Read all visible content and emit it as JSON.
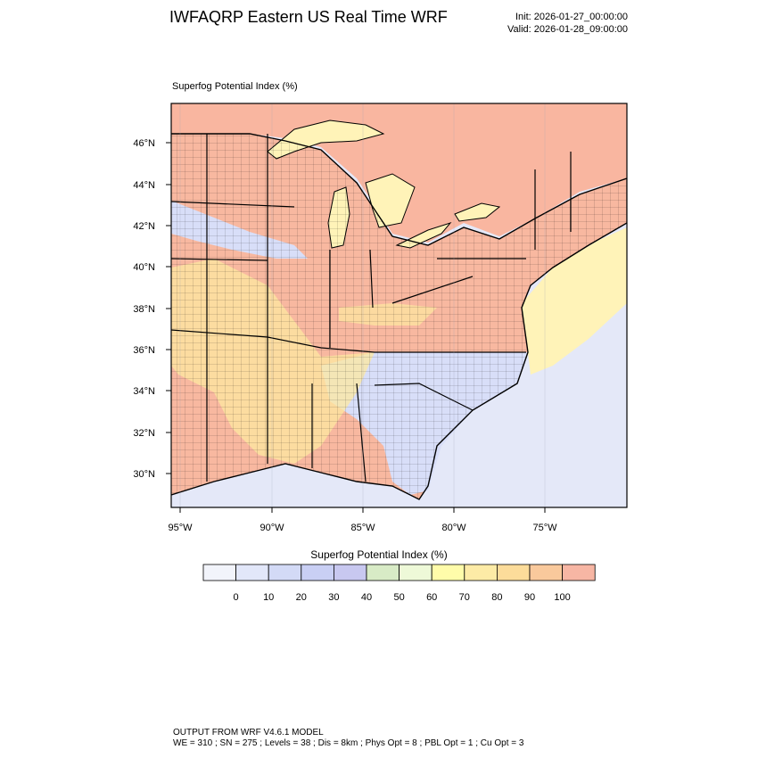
{
  "header": {
    "title": "IWFAQRP Eastern US Real Time WRF",
    "init": "Init: 2026-01-27_00:00:00",
    "valid": "Valid: 2026-01-28_09:00:00"
  },
  "map": {
    "field_label": "Superfog Potential Index   (%)",
    "lat_labels": [
      "46°N",
      "44°N",
      "42°N",
      "40°N",
      "38°N",
      "36°N",
      "34°N",
      "32°N",
      "30°N"
    ],
    "lon_labels": [
      "95°W",
      "90°W",
      "85°W",
      "80°W",
      "75°W"
    ],
    "colors": {
      "land_high": "#f8b8a0",
      "land_mid": "#fde8a0",
      "land_low": "#d8def8",
      "ocean": "#e4e8f8",
      "coast_yellow": "#fff3b8",
      "canada": "#f9b6a0"
    }
  },
  "colorbar": {
    "title": "Superfog Potential Index  (%)",
    "tick_labels": [
      "0",
      "10",
      "20",
      "30",
      "40",
      "50",
      "60",
      "70",
      "80",
      "90",
      "100"
    ],
    "colors": [
      "#f2f4fb",
      "#e2e7f9",
      "#d3daf6",
      "#c9cff4",
      "#c8c8f0",
      "#d8ebc6",
      "#eef9d8",
      "#fffcaa",
      "#fdeba6",
      "#fcdc9a",
      "#f9c99c",
      "#f7b6a4"
    ]
  },
  "footer": {
    "line1": "OUTPUT FROM WRF V4.6.1 MODEL",
    "line2": "WE = 310 ; SN = 275 ; Levels = 38 ; Dis = 8km ; Phys Opt = 8 ; PBL Opt = 1 ; Cu Opt = 3"
  }
}
